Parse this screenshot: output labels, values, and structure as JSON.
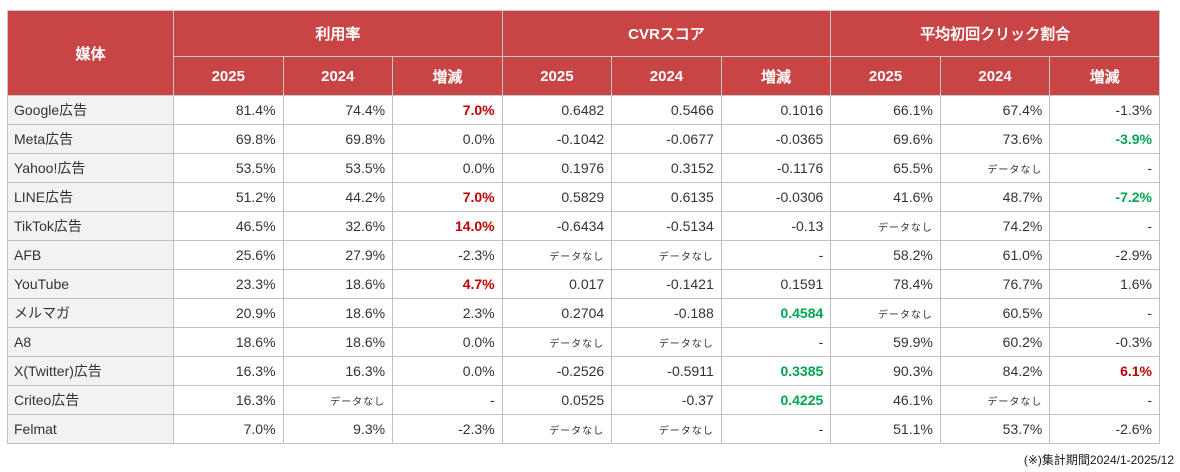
{
  "colors": {
    "header_bg": "#C94545",
    "header_text": "#FFFFFF",
    "grid_border": "#BFBFBF",
    "media_col_bg": "#F2F2F2",
    "text": "#333333",
    "increase_red": "#C00000",
    "decrease_green": "#00A650"
  },
  "chart_data": {
    "type": "table",
    "corner_header": "媒体",
    "groups": [
      {
        "label": "利用率",
        "cols": [
          "2025",
          "2024",
          "増減"
        ]
      },
      {
        "label": "CVRスコア",
        "cols": [
          "2025",
          "2024",
          "増減"
        ]
      },
      {
        "label": "平均初回クリック割合",
        "cols": [
          "2025",
          "2024",
          "増減"
        ]
      }
    ],
    "no_data_label": "データなし",
    "rows": [
      {
        "media": "Google広告",
        "values": [
          "81.4%",
          "74.4%",
          "7.0%",
          "0.6482",
          "0.5466",
          "0.1016",
          "66.1%",
          "67.4%",
          "-1.3%"
        ],
        "styles": [
          "",
          "",
          "red",
          "",
          "",
          "",
          "",
          "",
          ""
        ]
      },
      {
        "media": "Meta広告",
        "values": [
          "69.8%",
          "69.8%",
          "0.0%",
          "-0.1042",
          "-0.0677",
          "-0.0365",
          "69.6%",
          "73.6%",
          "-3.9%"
        ],
        "styles": [
          "",
          "",
          "",
          "",
          "",
          "",
          "",
          "",
          "green"
        ]
      },
      {
        "media": "Yahoo!広告",
        "values": [
          "53.5%",
          "53.5%",
          "0.0%",
          "0.1976",
          "0.3152",
          "-0.1176",
          "65.5%",
          "データなし",
          "-"
        ],
        "styles": [
          "",
          "",
          "",
          "",
          "",
          "",
          "",
          "nodata",
          ""
        ]
      },
      {
        "media": "LINE広告",
        "values": [
          "51.2%",
          "44.2%",
          "7.0%",
          "0.5829",
          "0.6135",
          "-0.0306",
          "41.6%",
          "48.7%",
          "-7.2%"
        ],
        "styles": [
          "",
          "",
          "red",
          "",
          "",
          "",
          "",
          "",
          "green"
        ]
      },
      {
        "media": "TikTok広告",
        "values": [
          "46.5%",
          "32.6%",
          "14.0%",
          "-0.6434",
          "-0.5134",
          "-0.13",
          "データなし",
          "74.2%",
          "-"
        ],
        "styles": [
          "",
          "",
          "red",
          "",
          "",
          "",
          "nodata",
          "",
          ""
        ]
      },
      {
        "media": "AFB",
        "values": [
          "25.6%",
          "27.9%",
          "-2.3%",
          "データなし",
          "データなし",
          "-",
          "58.2%",
          "61.0%",
          "-2.9%"
        ],
        "styles": [
          "",
          "",
          "",
          "nodata",
          "nodata",
          "",
          "",
          "",
          ""
        ]
      },
      {
        "media": "YouTube",
        "values": [
          "23.3%",
          "18.6%",
          "4.7%",
          "0.017",
          "-0.1421",
          "0.1591",
          "78.4%",
          "76.7%",
          "1.6%"
        ],
        "styles": [
          "",
          "",
          "red",
          "",
          "",
          "",
          "",
          "",
          ""
        ]
      },
      {
        "media": "メルマガ",
        "values": [
          "20.9%",
          "18.6%",
          "2.3%",
          "0.2704",
          "-0.188",
          "0.4584",
          "データなし",
          "60.5%",
          "-"
        ],
        "styles": [
          "",
          "",
          "",
          "",
          "",
          "green",
          "nodata",
          "",
          ""
        ]
      },
      {
        "media": "A8",
        "values": [
          "18.6%",
          "18.6%",
          "0.0%",
          "データなし",
          "データなし",
          "-",
          "59.9%",
          "60.2%",
          "-0.3%"
        ],
        "styles": [
          "",
          "",
          "",
          "nodata",
          "nodata",
          "",
          "",
          "",
          ""
        ]
      },
      {
        "media": "X(Twitter)広告",
        "values": [
          "16.3%",
          "16.3%",
          "0.0%",
          "-0.2526",
          "-0.5911",
          "0.3385",
          "90.3%",
          "84.2%",
          "6.1%"
        ],
        "styles": [
          "",
          "",
          "",
          "",
          "",
          "green",
          "",
          "",
          "red"
        ]
      },
      {
        "media": "Criteo広告",
        "values": [
          "16.3%",
          "データなし",
          "-",
          "0.0525",
          "-0.37",
          "0.4225",
          "46.1%",
          "データなし",
          "-"
        ],
        "styles": [
          "",
          "nodata",
          "",
          "",
          "",
          "green",
          "",
          "nodata",
          ""
        ]
      },
      {
        "media": "Felmat",
        "values": [
          "7.0%",
          "9.3%",
          "-2.3%",
          "データなし",
          "データなし",
          "-",
          "51.1%",
          "53.7%",
          "-2.6%"
        ],
        "styles": [
          "",
          "",
          "",
          "nodata",
          "nodata",
          "",
          "",
          "",
          ""
        ]
      }
    ],
    "annotation": "(※)集計期間2024/1-2025/12"
  }
}
